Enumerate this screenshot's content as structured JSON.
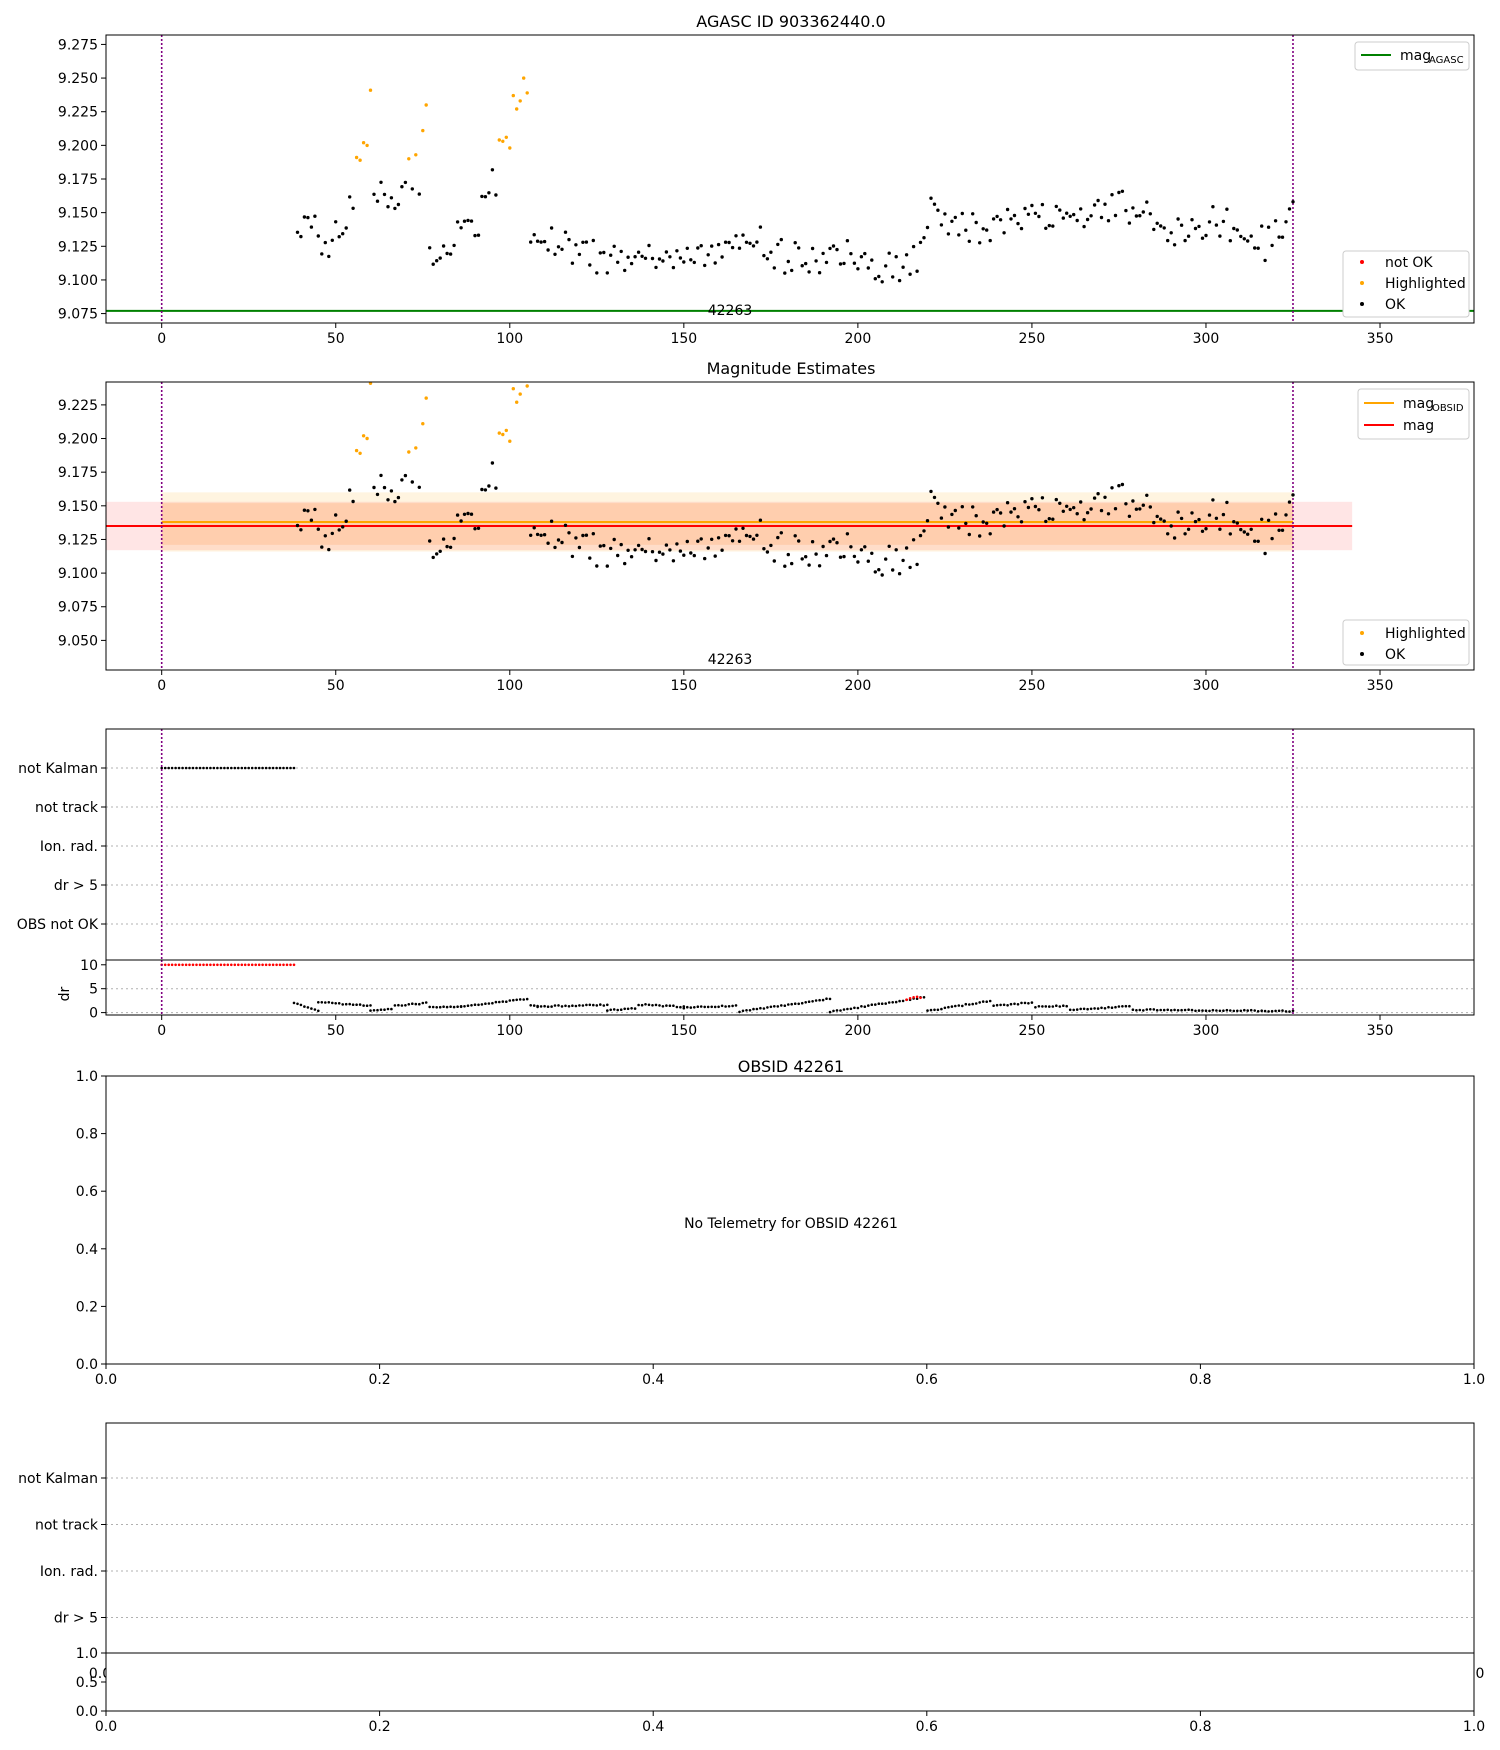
{
  "figure": {
    "title": "AGASC ID 903362440.0",
    "colors": {
      "ok": "#000000",
      "highlighted": "#ffa500",
      "not_ok": "#ff0000",
      "mag_agasc": "#008000",
      "mag_obsid": "#ffa500",
      "mag": "#ff0000",
      "obs_boundary": "#800080",
      "grid": "#b0b0b0"
    }
  },
  "chart_data": [
    {
      "id": "agasc",
      "type": "scatter",
      "title": "AGASC ID 903362440.0",
      "xlabel": "",
      "ylabel": "",
      "xlim": [
        -16,
        377
      ],
      "ylim": [
        9.068,
        9.282
      ],
      "xticks": [
        "0",
        "50",
        "100",
        "150",
        "200",
        "250",
        "300",
        "350"
      ],
      "yticks": [
        "9.075",
        "9.100",
        "9.125",
        "9.150",
        "9.175",
        "9.200",
        "9.225",
        "9.250",
        "9.275"
      ],
      "obs_boundaries": [
        0,
        325
      ],
      "obsid_annotation": "42263",
      "obsid_annotation_x": 163,
      "mag_agasc": 9.077,
      "legend_top": [
        {
          "label": "mag",
          "sub": "AGASC",
          "color": "#008000"
        }
      ],
      "legend_bottom": [
        {
          "label": "not OK",
          "color": "#ff0000"
        },
        {
          "label": "Highlighted",
          "color": "#ffa500"
        },
        {
          "label": "OK",
          "color": "#000000"
        }
      ],
      "series_highlighted_y": [
        [
          56,
          9.191
        ],
        [
          57,
          9.189
        ],
        [
          58,
          9.202
        ],
        [
          59,
          9.2
        ],
        [
          60,
          9.241
        ],
        [
          71,
          9.19
        ],
        [
          73,
          9.193
        ],
        [
          75,
          9.211
        ],
        [
          76,
          9.23
        ],
        [
          97,
          9.204
        ],
        [
          98,
          9.203
        ],
        [
          99,
          9.206
        ],
        [
          100,
          9.198
        ],
        [
          101,
          9.237
        ],
        [
          102,
          9.227
        ],
        [
          103,
          9.233
        ],
        [
          104,
          9.25
        ],
        [
          105,
          9.239
        ]
      ]
    },
    {
      "id": "magnitude_estimates",
      "type": "scatter",
      "title": "Magnitude Estimates",
      "xlim": [
        -16,
        377
      ],
      "ylim": [
        9.028,
        9.242
      ],
      "xticks": [
        "0",
        "50",
        "100",
        "150",
        "200",
        "250",
        "300",
        "350"
      ],
      "yticks": [
        "9.050",
        "9.075",
        "9.100",
        "9.125",
        "9.150",
        "9.175",
        "9.200",
        "9.225"
      ],
      "obs_boundaries": [
        0,
        325
      ],
      "obsid_annotation": "42263",
      "mag": 9.135,
      "mag_band": [
        9.117,
        9.153
      ],
      "mag_band_x": [
        -16,
        342
      ],
      "mag_obsid": 9.138,
      "mag_obsid_band": [
        9.116,
        9.16
      ],
      "mag_obsid_band_x": [
        0,
        325
      ],
      "legend_top": [
        {
          "label": "mag",
          "sub": "OBSID",
          "color": "#ffa500"
        },
        {
          "label": "mag",
          "sub": "",
          "color": "#ff0000"
        }
      ],
      "legend_bottom": [
        {
          "label": "Highlighted",
          "color": "#ffa500"
        },
        {
          "label": "OK",
          "color": "#000000"
        }
      ]
    },
    {
      "id": "flags_42263",
      "type": "scatter",
      "categories": [
        "not Kalman",
        "not track",
        "Ion. rad.",
        "dr > 5",
        "OBS not OK"
      ],
      "xlim": [
        -16,
        377
      ],
      "obs_boundaries": [
        0,
        325
      ],
      "not_kalman_x_range": [
        0,
        38
      ],
      "dr_ylim": [
        -0.5,
        11
      ],
      "dr_yticks": [
        "0",
        "5",
        "10"
      ],
      "dr_label": "dr",
      "xticks": [
        "0",
        "50",
        "100",
        "150",
        "200",
        "250",
        "300",
        "350"
      ],
      "dr_saturated_value": 10,
      "dr_saturated_x_range": [
        0,
        38
      ],
      "dr_segments": [
        [
          38,
          45,
          2.0,
          0.5
        ],
        [
          45,
          60,
          2.2,
          1.4
        ],
        [
          60,
          66,
          0.4,
          0.8
        ],
        [
          67,
          76,
          1.4,
          2.0
        ],
        [
          77,
          86,
          1.2,
          1.3
        ],
        [
          86,
          105,
          1.2,
          2.9
        ],
        [
          106,
          108,
          1.6,
          1.1
        ],
        [
          108,
          128,
          1.3,
          1.6
        ],
        [
          128,
          136,
          0.5,
          0.9
        ],
        [
          137,
          150,
          1.7,
          1.2
        ],
        [
          150,
          165,
          1.0,
          1.5
        ],
        [
          166,
          192,
          0.2,
          2.9
        ],
        [
          192,
          219,
          0.2,
          3.2
        ],
        [
          220,
          238,
          0.3,
          2.5
        ],
        [
          239,
          250,
          1.4,
          2.1
        ],
        [
          251,
          260,
          1.2,
          1.4
        ],
        [
          261,
          278,
          0.6,
          1.3
        ],
        [
          279,
          325,
          0.6,
          0.3
        ]
      ],
      "dr_red_points": [
        [
          214,
          2.7
        ],
        [
          215,
          3.0
        ],
        [
          216,
          3.2
        ],
        [
          217,
          3.3
        ],
        [
          218,
          3.1
        ]
      ]
    },
    {
      "id": "obsid_42261",
      "type": "scatter",
      "title": "OBSID 42261",
      "xlim": [
        0,
        1
      ],
      "ylim": [
        0,
        1
      ],
      "xticks": [
        "0.0",
        "0.2",
        "0.4",
        "0.6",
        "0.8",
        "1.0"
      ],
      "yticks": [
        "0.0",
        "0.2",
        "0.4",
        "0.6",
        "0.8",
        "1.0"
      ],
      "message": "No Telemetry for OBSID 42261"
    },
    {
      "id": "flags_42261",
      "type": "scatter",
      "categories": [
        "not Kalman",
        "not track",
        "Ion. rad.",
        "dr > 5"
      ],
      "xticks": [
        "0.0",
        "0.2",
        "0.4",
        "0.6",
        "0.8",
        "1.0"
      ],
      "yticks": [
        "0.0",
        "0.5",
        "1.0"
      ],
      "hidden_tick_left": "0.0",
      "hidden_tick_right": "0"
    }
  ]
}
